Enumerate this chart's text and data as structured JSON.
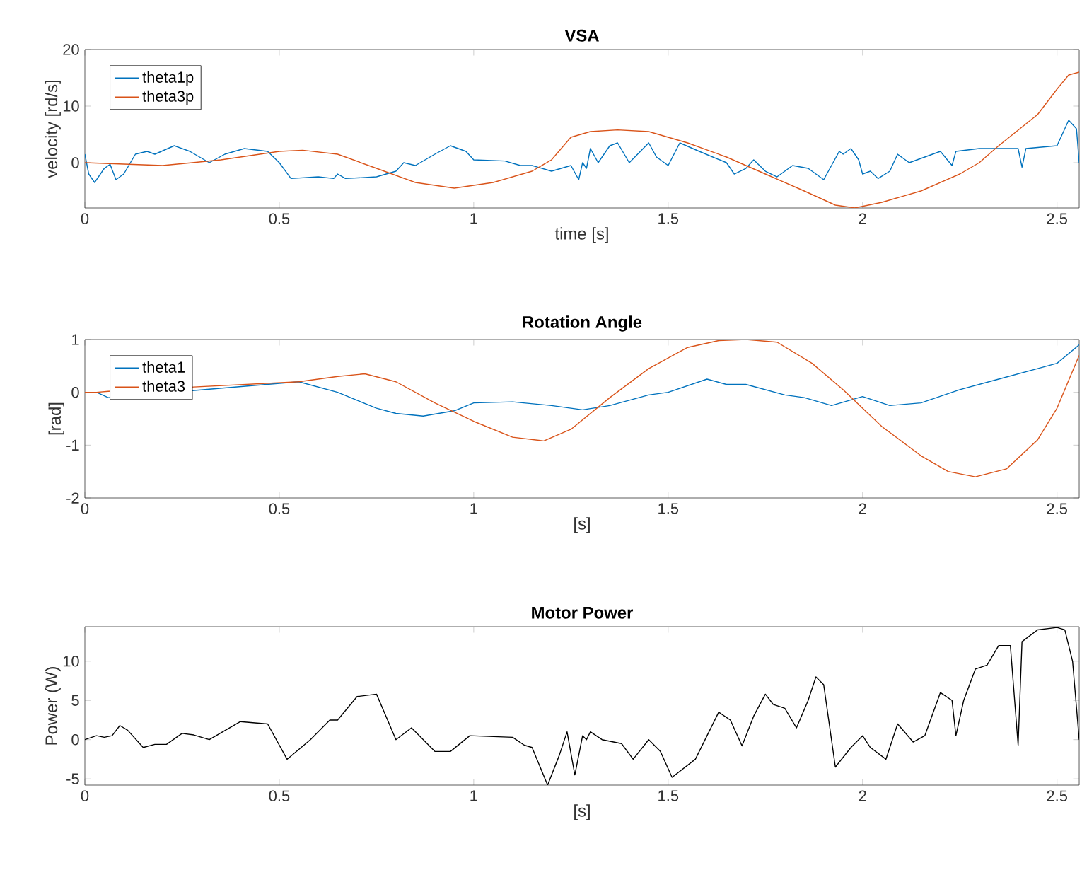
{
  "chart_data": [
    {
      "type": "line",
      "title": "VSA",
      "xlabel": "time [s]",
      "ylabel": "velocity [rd/s]",
      "xlim": [
        0,
        2.557
      ],
      "ylim": [
        -8,
        20
      ],
      "xticks": [
        0,
        0.5,
        1,
        1.5,
        2,
        2.5
      ],
      "yticks": [
        0,
        10,
        20
      ],
      "legend": "top left",
      "grid": false,
      "marker": "none",
      "series": [
        {
          "name": "theta1p",
          "color": "#0072bd",
          "x": [
            0,
            0.01,
            0.025,
            0.05,
            0.065,
            0.08,
            0.1,
            0.13,
            0.16,
            0.18,
            0.23,
            0.27,
            0.32,
            0.36,
            0.41,
            0.47,
            0.5,
            0.53,
            0.6,
            0.64,
            0.65,
            0.67,
            0.75,
            0.8,
            0.82,
            0.85,
            0.9,
            0.94,
            0.98,
            1.0,
            1.08,
            1.12,
            1.15,
            1.2,
            1.25,
            1.27,
            1.28,
            1.29,
            1.3,
            1.32,
            1.35,
            1.37,
            1.4,
            1.45,
            1.47,
            1.5,
            1.53,
            1.58,
            1.65,
            1.67,
            1.7,
            1.72,
            1.75,
            1.78,
            1.82,
            1.86,
            1.9,
            1.94,
            1.95,
            1.97,
            1.99,
            2.0,
            2.02,
            2.04,
            2.07,
            2.09,
            2.12,
            2.2,
            2.23,
            2.24,
            2.3,
            2.4,
            2.41,
            2.42,
            2.5,
            2.53,
            2.55,
            2.557
          ],
          "values": [
            1.5,
            -2,
            -3.5,
            -1,
            -0.3,
            -3,
            -2,
            1.5,
            2,
            1.5,
            3,
            2,
            0,
            1.5,
            2.5,
            2,
            0,
            -2.8,
            -2.5,
            -2.8,
            -2,
            -2.8,
            -2.5,
            -1.5,
            0,
            -0.5,
            1.5,
            3,
            2,
            0.5,
            0.3,
            -0.5,
            -0.5,
            -1.5,
            -0.5,
            -3,
            0,
            -1,
            2.5,
            0,
            3,
            3.5,
            0,
            3.5,
            1,
            -0.5,
            3.5,
            2,
            0,
            -2,
            -1,
            0.5,
            -1.5,
            -2.5,
            -0.5,
            -1,
            -3,
            2,
            1.5,
            2.5,
            0.5,
            -2,
            -1.5,
            -2.8,
            -1.5,
            1.5,
            0,
            2,
            -0.5,
            2,
            2.5,
            2.5,
            -0.8,
            2.5,
            3,
            7.5,
            6,
            0
          ]
        },
        {
          "name": "theta3p",
          "color": "#d95319",
          "x": [
            0,
            0.2,
            0.35,
            0.5,
            0.56,
            0.65,
            0.75,
            0.85,
            0.95,
            1.05,
            1.15,
            1.2,
            1.25,
            1.3,
            1.37,
            1.45,
            1.55,
            1.65,
            1.75,
            1.85,
            1.93,
            1.98,
            2.05,
            2.15,
            2.25,
            2.3,
            2.35,
            2.45,
            2.5,
            2.53,
            2.557
          ],
          "values": [
            0,
            -0.5,
            0.5,
            2,
            2.2,
            1.5,
            -1,
            -3.5,
            -4.5,
            -3.5,
            -1.5,
            0.5,
            4.5,
            5.5,
            5.8,
            5.5,
            3.5,
            1,
            -2,
            -5,
            -7.5,
            -8,
            -7,
            -5,
            -2,
            0,
            3,
            8.5,
            13,
            15.5,
            16
          ]
        }
      ]
    },
    {
      "type": "line",
      "title": "Rotation Angle",
      "xlabel": "[s]",
      "ylabel": "[rad]",
      "xlim": [
        0,
        2.557
      ],
      "ylim": [
        -2,
        1
      ],
      "xticks": [
        0,
        0.5,
        1,
        1.5,
        2,
        2.5
      ],
      "yticks": [
        -2,
        -1,
        0,
        1
      ],
      "legend": "top left",
      "grid": false,
      "marker": "none",
      "series": [
        {
          "name": "theta1",
          "color": "#0072bd",
          "x": [
            0,
            0.03,
            0.06,
            0.55,
            0.65,
            0.75,
            0.8,
            0.87,
            0.95,
            1.0,
            1.1,
            1.2,
            1.28,
            1.35,
            1.45,
            1.5,
            1.6,
            1.65,
            1.7,
            1.8,
            1.85,
            1.92,
            2.0,
            2.07,
            2.15,
            2.25,
            2.35,
            2.45,
            2.5,
            2.557
          ],
          "values": [
            0,
            0,
            -0.1,
            0.2,
            0.0,
            -0.3,
            -0.4,
            -0.45,
            -0.35,
            -0.2,
            -0.18,
            -0.25,
            -0.33,
            -0.25,
            -0.05,
            0.0,
            0.25,
            0.15,
            0.15,
            -0.05,
            -0.1,
            -0.25,
            -0.08,
            -0.25,
            -0.2,
            0.05,
            0.25,
            0.45,
            0.55,
            0.9
          ]
        },
        {
          "name": "theta3",
          "color": "#d95319",
          "x": [
            0,
            0.03,
            0.06,
            0.55,
            0.65,
            0.72,
            0.8,
            0.9,
            1.0,
            1.1,
            1.18,
            1.25,
            1.35,
            1.45,
            1.55,
            1.63,
            1.7,
            1.78,
            1.87,
            1.95,
            2.05,
            2.15,
            2.22,
            2.29,
            2.37,
            2.45,
            2.5,
            2.557
          ],
          "values": [
            0,
            0,
            0.02,
            0.2,
            0.3,
            0.35,
            0.2,
            -0.2,
            -0.55,
            -0.85,
            -0.92,
            -0.7,
            -0.1,
            0.45,
            0.85,
            0.98,
            1.0,
            0.95,
            0.55,
            0.05,
            -0.65,
            -1.2,
            -1.5,
            -1.6,
            -1.45,
            -0.9,
            -0.3,
            0.7
          ]
        }
      ]
    },
    {
      "type": "line",
      "title": "Motor Power",
      "xlabel": "[s]",
      "ylabel": "Power (W)",
      "xlim": [
        0,
        2.557
      ],
      "ylim": [
        -5.8,
        14.4
      ],
      "xticks": [
        0,
        0.5,
        1,
        1.5,
        2,
        2.5
      ],
      "yticks": [
        -5,
        0,
        5,
        10
      ],
      "grid": false,
      "marker": "none",
      "series": [
        {
          "color": "#000000",
          "x": [
            0,
            0.03,
            0.05,
            0.07,
            0.09,
            0.11,
            0.15,
            0.18,
            0.21,
            0.25,
            0.28,
            0.32,
            0.4,
            0.47,
            0.52,
            0.58,
            0.63,
            0.65,
            0.7,
            0.75,
            0.8,
            0.84,
            0.9,
            0.94,
            0.99,
            1.1,
            1.13,
            1.15,
            1.19,
            1.22,
            1.24,
            1.26,
            1.28,
            1.29,
            1.3,
            1.33,
            1.38,
            1.41,
            1.45,
            1.48,
            1.51,
            1.57,
            1.6,
            1.63,
            1.66,
            1.69,
            1.72,
            1.75,
            1.77,
            1.8,
            1.83,
            1.86,
            1.88,
            1.9,
            1.93,
            1.97,
            2.0,
            2.02,
            2.06,
            2.09,
            2.13,
            2.16,
            2.2,
            2.23,
            2.24,
            2.26,
            2.29,
            2.32,
            2.35,
            2.38,
            2.4,
            2.41,
            2.45,
            2.5,
            2.52,
            2.54,
            2.557
          ],
          "values": [
            0,
            0.5,
            0.3,
            0.5,
            1.8,
            1.2,
            -1,
            -0.6,
            -0.6,
            0.8,
            0.6,
            0,
            2.3,
            2.0,
            -2.5,
            0,
            2.5,
            2.5,
            5.5,
            5.8,
            0,
            1.5,
            -1.5,
            -1.5,
            0.5,
            0.3,
            -0.7,
            -1,
            -5.8,
            -2,
            1,
            -4.5,
            0.5,
            0,
            1,
            0,
            -0.5,
            -2.5,
            0,
            -1.5,
            -4.8,
            -2.5,
            0.5,
            3.5,
            2.5,
            -0.8,
            3,
            5.8,
            4.5,
            4,
            1.5,
            5,
            8,
            7,
            -3.5,
            -1,
            0.5,
            -1,
            -2.5,
            2,
            -0.3,
            0.5,
            6,
            5,
            0.5,
            5,
            9,
            9.5,
            12,
            12,
            -0.7,
            12.5,
            14,
            14.3,
            14,
            10,
            0
          ]
        }
      ]
    }
  ]
}
